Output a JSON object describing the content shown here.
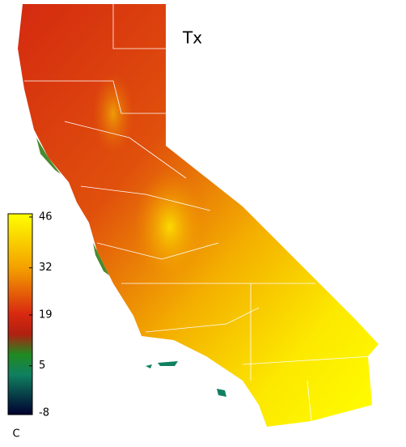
{
  "title": "Tx",
  "colorbar": {
    "lim": [
      -8,
      46
    ],
    "ticks": [
      46,
      32,
      19,
      5,
      -8
    ],
    "unit": "C"
  }
}
